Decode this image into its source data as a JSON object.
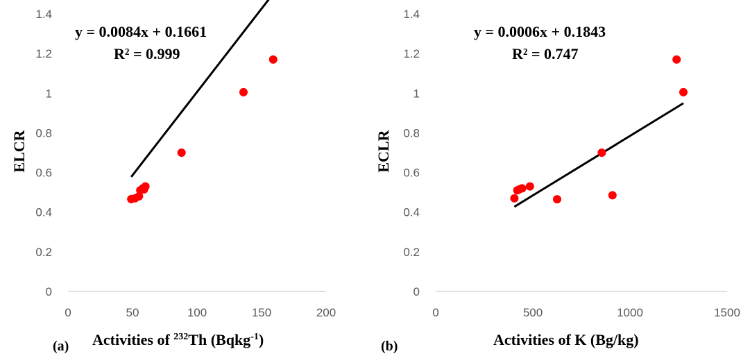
{
  "chart_data": [
    {
      "type": "scatter",
      "panel_label": "(a)",
      "xlabel_prefix": "Activities of ",
      "xlabel_sup": "232",
      "xlabel_mid": "Th (Bqkg",
      "xlabel_sup2": "-1",
      "xlabel_suffix": ")",
      "ylabel": "ELCR",
      "equation": "y = 0.0084x + 0.1661",
      "r2": "R² = 0.999",
      "xlim": [
        0,
        200
      ],
      "ylim": [
        0,
        1.4
      ],
      "xticks": [
        0,
        50,
        100,
        150,
        200
      ],
      "yticks": [
        0,
        0.2,
        0.4,
        0.6,
        0.8,
        1,
        1.2,
        1.4
      ],
      "xtick_labels": [
        "0",
        "50",
        "100",
        "150",
        "200"
      ],
      "ytick_labels": [
        "0",
        "0.2",
        "0.4",
        "0.6",
        "0.8",
        "1",
        "1.2",
        "1.4"
      ],
      "points": [
        {
          "x": 49,
          "y": 0.466
        },
        {
          "x": 52,
          "y": 0.47
        },
        {
          "x": 55,
          "y": 0.48
        },
        {
          "x": 56,
          "y": 0.51
        },
        {
          "x": 58,
          "y": 0.52
        },
        {
          "x": 59,
          "y": 0.515
        },
        {
          "x": 60,
          "y": 0.53
        },
        {
          "x": 88,
          "y": 0.7
        },
        {
          "x": 136,
          "y": 1.005
        },
        {
          "x": 159,
          "y": 1.17
        }
      ],
      "trendline": {
        "slope": 0.0084,
        "intercept": 0.1661,
        "x_range": [
          49,
          159
        ]
      }
    },
    {
      "type": "scatter",
      "panel_label": "(b)",
      "xlabel": "Activities of K (Bg/kg)",
      "ylabel": "ECLR",
      "equation": "y = 0.0006x + 0.1843",
      "r2": "R² = 0.747",
      "xlim": [
        0,
        1500
      ],
      "ylim": [
        0,
        1.4
      ],
      "xticks": [
        0,
        500,
        1000,
        1500
      ],
      "yticks": [
        0,
        0.2,
        0.4,
        0.6,
        0.8,
        1,
        1.2,
        1.4
      ],
      "xtick_labels": [
        "0",
        "500",
        "1000",
        "1500"
      ],
      "ytick_labels": [
        "0",
        "0.2",
        "0.4",
        "0.6",
        "0.8",
        "1",
        "1.2",
        "1.4"
      ],
      "points": [
        {
          "x": 405,
          "y": 0.47
        },
        {
          "x": 420,
          "y": 0.51
        },
        {
          "x": 430,
          "y": 0.515
        },
        {
          "x": 445,
          "y": 0.52
        },
        {
          "x": 485,
          "y": 0.53
        },
        {
          "x": 625,
          "y": 0.465
        },
        {
          "x": 855,
          "y": 0.7
        },
        {
          "x": 910,
          "y": 0.485
        },
        {
          "x": 1240,
          "y": 1.17
        },
        {
          "x": 1275,
          "y": 1.005
        }
      ],
      "trendline": {
        "slope": 0.0006,
        "intercept": 0.1843,
        "x_range": [
          405,
          1275
        ]
      }
    }
  ]
}
